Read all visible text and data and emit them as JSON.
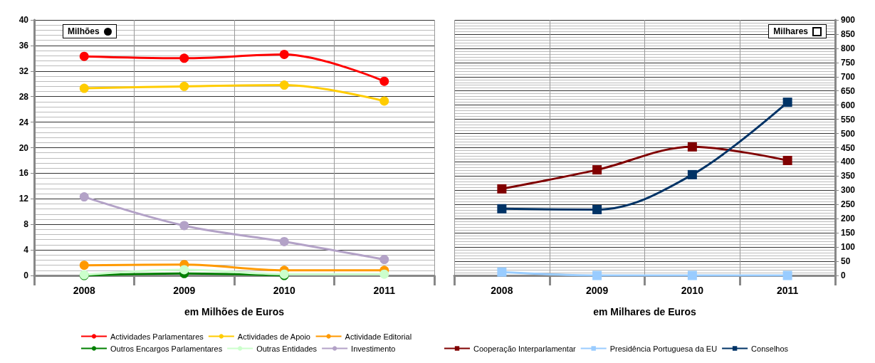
{
  "chart_data": [
    {
      "type": "line",
      "categories": [
        "2008",
        "2009",
        "2010",
        "2011"
      ],
      "xlabel": "em Milhões de Euros",
      "ylim": [
        0,
        40
      ],
      "yticks": [
        0,
        4,
        8,
        12,
        16,
        20,
        24,
        28,
        32,
        36,
        40
      ],
      "grid": true,
      "legend": "bottom",
      "marker": "circle",
      "annotations": [
        "Milhões"
      ],
      "series": [
        {
          "name": "Actividades Parlamentares",
          "color": "#ff0000",
          "values": [
            34.3,
            34.0,
            34.6,
            30.4
          ]
        },
        {
          "name": "Actividades de Apoio",
          "color": "#ffcc00",
          "values": [
            29.3,
            29.6,
            29.8,
            27.3
          ]
        },
        {
          "name": "Actividade Editorial",
          "color": "#ff9900",
          "values": [
            1.6,
            1.7,
            0.8,
            0.8
          ]
        },
        {
          "name": "Outros Encargos Parlamentares",
          "color": "#008000",
          "values": [
            0.0,
            0.3,
            0.0,
            null
          ]
        },
        {
          "name": "Outras Entidades",
          "color": "#ccffcc",
          "values": [
            0.1,
            0.9,
            0.2,
            0.2
          ]
        },
        {
          "name": "Investimento",
          "color": "#b3a2c7",
          "values": [
            12.3,
            7.8,
            5.3,
            2.5
          ]
        }
      ]
    },
    {
      "type": "line",
      "categories": [
        "2008",
        "2009",
        "2010",
        "2011"
      ],
      "xlabel": "em Milhares de Euros",
      "ylim": [
        0,
        900
      ],
      "yticks": [
        0,
        50,
        100,
        150,
        200,
        250,
        300,
        350,
        400,
        450,
        500,
        550,
        600,
        650,
        700,
        750,
        800,
        850,
        900
      ],
      "grid": true,
      "legend": "bottom",
      "marker": "square",
      "annotations": [
        "Milhares"
      ],
      "series": [
        {
          "name": "Cooperação Interparlamentar",
          "color": "#800000",
          "values": [
            305,
            372,
            453,
            405
          ]
        },
        {
          "name": "Presidência Portuguesa da EU",
          "color": "#99ccff",
          "values": [
            12,
            0,
            0,
            0
          ]
        },
        {
          "name": "Conselhos",
          "color": "#003366",
          "values": [
            235,
            232,
            355,
            610
          ]
        }
      ]
    }
  ]
}
